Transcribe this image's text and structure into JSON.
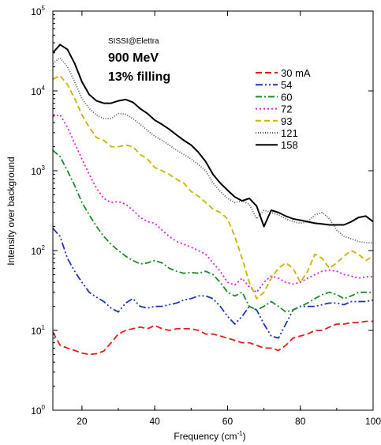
{
  "chart_data": {
    "type": "line",
    "title": "",
    "xlabel": "Frequency (cm",
    "xlabel_sup": "-1",
    "xlabel_end": ")",
    "ylabel": "Intensity over background",
    "y_scale": "log",
    "xlim": [
      12,
      100
    ],
    "ylim": [
      1,
      100000
    ],
    "x_ticks": [
      20,
      40,
      60,
      80,
      100
    ],
    "y_tick_bases": [
      "10",
      "10",
      "10",
      "10",
      "10",
      "10"
    ],
    "y_tick_exps": [
      "0",
      "1",
      "2",
      "3",
      "4",
      "5"
    ],
    "annotations": {
      "source": "SISSI@Elettra",
      "energy": "900 MeV",
      "filling": "13% filling"
    },
    "legend_position": "top-right",
    "grid": false,
    "series": [
      {
        "name": "30 mA",
        "color": "#e0201b",
        "dash": "8,4",
        "x": [
          12,
          14,
          16,
          18,
          20,
          22,
          24,
          26,
          28,
          30,
          32,
          34,
          36,
          38,
          40,
          42,
          44,
          46,
          48,
          50,
          52,
          54,
          56,
          58,
          60,
          62,
          64,
          66,
          68,
          70,
          72,
          74,
          76,
          78,
          80,
          82,
          84,
          86,
          88,
          90,
          92,
          94,
          96,
          98,
          100
        ],
        "y": [
          9.5,
          6.5,
          6,
          5.6,
          5.2,
          5,
          5.1,
          5.5,
          7,
          9,
          10,
          10.5,
          11,
          10.5,
          11.5,
          10.5,
          10,
          10.5,
          10.5,
          10.5,
          10,
          9,
          9,
          8.5,
          8,
          7.5,
          7,
          7,
          6.5,
          6,
          6,
          5.6,
          6.5,
          8,
          8.5,
          9,
          10,
          10,
          11,
          12,
          12,
          12.5,
          12.5,
          13,
          13
        ]
      },
      {
        "name": "54",
        "color": "#1f35b8",
        "dash": "9,3,2,3,2,3",
        "x": [
          12,
          14,
          16,
          18,
          20,
          22,
          24,
          26,
          28,
          30,
          32,
          34,
          36,
          38,
          40,
          42,
          44,
          46,
          48,
          50,
          52,
          54,
          56,
          58,
          60,
          62,
          64,
          66,
          68,
          70,
          72,
          74,
          76,
          78,
          80,
          82,
          84,
          86,
          88,
          90,
          92,
          94,
          96,
          98,
          100
        ],
        "y": [
          190,
          150,
          80,
          55,
          40,
          30,
          26,
          23,
          19,
          17,
          22,
          25,
          20,
          19,
          20,
          20,
          21,
          22,
          24,
          25,
          27,
          27,
          25,
          20,
          15,
          12,
          15,
          20,
          18,
          12,
          8.5,
          8,
          12,
          18,
          20,
          20,
          20,
          21,
          22,
          22,
          21,
          23,
          23,
          23,
          24
        ]
      },
      {
        "name": "60",
        "color": "#1f8a2a",
        "dash": "8,3,2,3",
        "x": [
          12,
          14,
          16,
          18,
          20,
          22,
          24,
          26,
          28,
          30,
          32,
          34,
          36,
          38,
          40,
          42,
          44,
          46,
          48,
          50,
          52,
          54,
          56,
          58,
          60,
          62,
          64,
          66,
          68,
          70,
          72,
          74,
          76,
          78,
          80,
          82,
          84,
          86,
          88,
          90,
          92,
          94,
          96,
          98,
          100
        ],
        "y": [
          1800,
          1500,
          1000,
          650,
          400,
          280,
          200,
          150,
          120,
          100,
          85,
          75,
          68,
          70,
          75,
          70,
          60,
          55,
          52,
          53,
          52,
          55,
          50,
          40,
          30,
          27,
          30,
          20,
          18,
          20,
          23,
          20,
          17,
          18,
          20,
          22,
          25,
          28,
          30,
          28,
          25,
          27,
          30,
          30,
          30
        ]
      },
      {
        "name": "72",
        "color": "#e020d8",
        "dash": "2,3",
        "x": [
          12,
          14,
          16,
          18,
          20,
          22,
          24,
          26,
          28,
          30,
          32,
          34,
          36,
          38,
          40,
          42,
          44,
          46,
          48,
          50,
          52,
          54,
          56,
          58,
          60,
          62,
          64,
          66,
          68,
          70,
          72,
          74,
          76,
          78,
          80,
          82,
          84,
          86,
          88,
          90,
          92,
          94,
          96,
          98,
          100
        ],
        "y": [
          4800,
          5000,
          3500,
          2200,
          1400,
          900,
          600,
          450,
          400,
          410,
          380,
          320,
          260,
          230,
          220,
          180,
          150,
          130,
          120,
          110,
          100,
          90,
          70,
          55,
          40,
          37,
          45,
          35,
          30,
          40,
          48,
          45,
          40,
          38,
          40,
          45,
          50,
          55,
          57,
          55,
          50,
          48,
          45,
          47,
          47
        ]
      },
      {
        "name": "93",
        "color": "#c8b400",
        "dash": "7,4",
        "x": [
          12,
          14,
          16,
          18,
          20,
          22,
          24,
          26,
          28,
          30,
          32,
          34,
          36,
          38,
          40,
          42,
          44,
          46,
          48,
          50,
          52,
          54,
          56,
          58,
          60,
          62,
          64,
          66,
          68,
          70,
          72,
          74,
          76,
          78,
          80,
          82,
          84,
          86,
          88,
          90,
          92,
          94,
          96,
          98,
          100
        ],
        "y": [
          14000,
          15500,
          12000,
          8000,
          5000,
          3500,
          2600,
          2400,
          2000,
          2000,
          2100,
          2000,
          1600,
          1400,
          1100,
          1000,
          900,
          780,
          700,
          550,
          480,
          400,
          330,
          300,
          250,
          150,
          80,
          40,
          25,
          30,
          45,
          60,
          70,
          60,
          40,
          55,
          90,
          80,
          60,
          70,
          85,
          100,
          90,
          75,
          85
        ]
      },
      {
        "name": "121",
        "color": "#555555",
        "dash": "1,2",
        "x": [
          12,
          14,
          16,
          18,
          20,
          22,
          24,
          26,
          28,
          30,
          32,
          34,
          36,
          38,
          40,
          42,
          44,
          46,
          48,
          50,
          52,
          54,
          56,
          58,
          60,
          62,
          64,
          66,
          68,
          70,
          72,
          74,
          76,
          78,
          80,
          82,
          84,
          86,
          88,
          90,
          92,
          94,
          96,
          98,
          100
        ],
        "y": [
          22000,
          26000,
          20000,
          13000,
          8000,
          6000,
          5000,
          4500,
          4500,
          5200,
          5100,
          4500,
          3800,
          3200,
          2700,
          2400,
          2100,
          1800,
          1600,
          1400,
          1200,
          1000,
          700,
          550,
          450,
          400,
          420,
          380,
          250,
          320,
          300,
          280,
          250,
          230,
          220,
          230,
          280,
          300,
          250,
          180,
          150,
          140,
          130,
          125,
          125
        ]
      },
      {
        "name": "158",
        "color": "#000000",
        "dash": "",
        "x": [
          12,
          14,
          16,
          18,
          20,
          22,
          24,
          26,
          28,
          30,
          32,
          34,
          36,
          38,
          40,
          42,
          44,
          46,
          48,
          50,
          52,
          54,
          56,
          58,
          60,
          62,
          64,
          66,
          68,
          70,
          72,
          74,
          76,
          78,
          80,
          82,
          84,
          86,
          88,
          90,
          92,
          94,
          96,
          98,
          100
        ],
        "y": [
          30000,
          38000,
          33000,
          22000,
          13000,
          9000,
          7500,
          7000,
          7000,
          7500,
          7800,
          7200,
          6000,
          5200,
          4300,
          3800,
          3300,
          2800,
          2400,
          2100,
          1700,
          1300,
          900,
          700,
          570,
          470,
          420,
          450,
          360,
          200,
          320,
          300,
          270,
          250,
          240,
          230,
          220,
          215,
          210,
          210,
          210,
          230,
          260,
          270,
          230
        ]
      }
    ]
  }
}
